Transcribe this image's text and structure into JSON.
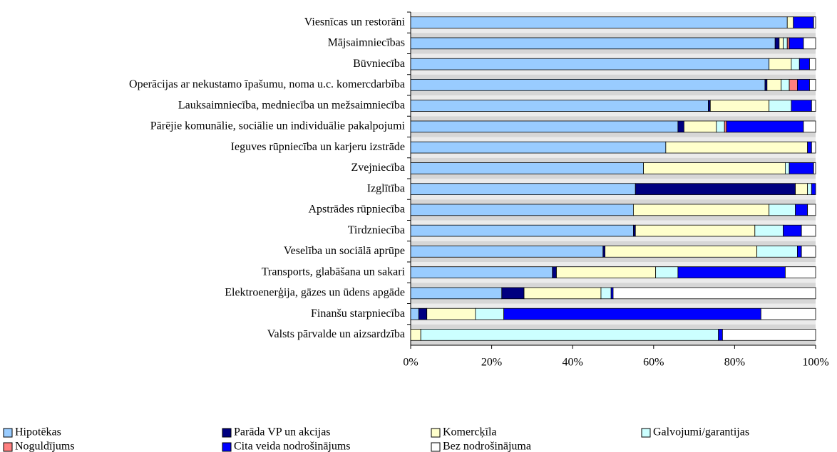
{
  "chart_data": {
    "type": "bar",
    "orientation": "horizontal",
    "stacked": true,
    "categories": [
      "Viesnīcas un restorāni",
      "Mājsaimniecības",
      "Būvniecība",
      "Operācijas ar nekustamo īpašumu, noma u.c. komercdarbība",
      "Lauksaimniecība, medniecība un mežsaimniecība",
      "Pārējie komunālie, sociālie un individuālie pakalpojumi",
      "Ieguves rūpniecība un karjeru izstrāde",
      "Zvejniecība",
      "Izglītība",
      "Apstrādes rūpniecība",
      "Tirdzniecība",
      "Veselība un sociālā aprūpe",
      "Transports, glabāšana un sakari",
      "Elektroenerģija, gāzes un ūdens apgāde",
      "Finanšu starpniecība",
      "Valsts pārvalde un aizsardzība"
    ],
    "series": [
      {
        "name": "Hipotēkas",
        "color": "#99ccff",
        "values": [
          93,
          90,
          88.5,
          87.5,
          73.5,
          66,
          63,
          57.5,
          55.5,
          55,
          55,
          47.5,
          35,
          22.5,
          2,
          0
        ]
      },
      {
        "name": "Parāda VP un akcijas",
        "color": "#000080",
        "values": [
          0,
          1,
          0,
          0.5,
          0.5,
          1.5,
          0,
          0,
          39.5,
          0,
          0.5,
          0.5,
          1,
          5.5,
          2,
          0
        ]
      },
      {
        "name": "Komercķīla",
        "color": "#ffffcc",
        "values": [
          1.5,
          1,
          5.5,
          3.5,
          14.5,
          8,
          35,
          35,
          3,
          33.5,
          29.5,
          37.5,
          24.5,
          19,
          12,
          2.5
        ]
      },
      {
        "name": "Galvojumi/garantijas",
        "color": "#ccffff",
        "values": [
          0,
          1,
          2,
          2,
          5.5,
          2,
          0,
          1,
          1,
          6.5,
          7,
          10,
          5.5,
          2.5,
          7,
          73.5
        ]
      },
      {
        "name": "Noguldījums",
        "color": "#ff8080",
        "values": [
          0,
          0.5,
          0,
          2,
          0,
          0.5,
          0,
          0,
          0,
          0,
          0,
          0,
          0,
          0,
          0,
          0
        ]
      },
      {
        "name": "Cita veida nodrošinājums",
        "color": "#0000ff",
        "values": [
          5,
          3.5,
          2.5,
          3,
          5,
          19,
          1,
          6,
          1,
          3,
          4.5,
          1,
          26.5,
          0.5,
          63.5,
          1
        ]
      },
      {
        "name": "Bez nodrošinājuma",
        "color": "#ffffff",
        "values": [
          0.5,
          3,
          1.5,
          1.5,
          1,
          3,
          1,
          0.5,
          0,
          2,
          3.5,
          3.5,
          7.5,
          50,
          13.5,
          23
        ]
      }
    ],
    "xlim": [
      0,
      100
    ],
    "xticks": [
      {
        "value": 0,
        "label": "0%"
      },
      {
        "value": 20,
        "label": "20%"
      },
      {
        "value": 40,
        "label": "40%"
      },
      {
        "value": 60,
        "label": "60%"
      },
      {
        "value": 80,
        "label": "80%"
      },
      {
        "value": 100,
        "label": "100%"
      }
    ]
  }
}
